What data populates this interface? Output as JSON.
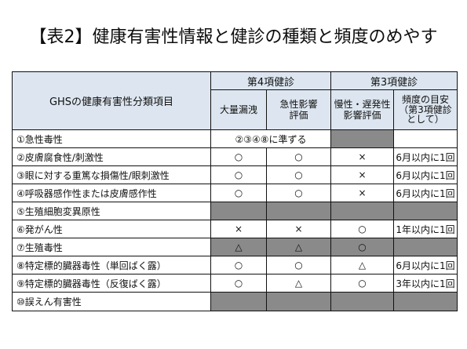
{
  "title": "【表2】健康有害性情報と健診の種類と頻度のめやす",
  "header": {
    "item_col": "GHSの健康有害性分類項目",
    "group4": "第4項健診",
    "group3": "第3項健診",
    "sub": {
      "col1": "大量漏洩",
      "col2a": "急性影響",
      "col2b": "評価",
      "col3a": "慢性・遅発性",
      "col3b": "影響評価",
      "col4a": "頻度の目安",
      "col4b": "（第3項健診",
      "col4c": "として）"
    }
  },
  "rows": [
    {
      "label": "①急性毒性",
      "span_text": "②③④⑧に準ずる",
      "c3": "",
      "c4": ""
    },
    {
      "label": "②皮膚腐食性/刺激性",
      "c1": "○",
      "c2": "○",
      "c3": "×",
      "c4": "6月以内に1回"
    },
    {
      "label": "③眼に対する重篤な損傷性/眼刺激性",
      "c1": "○",
      "c2": "○",
      "c3": "×",
      "c4": "6月以内に1回"
    },
    {
      "label": "④呼吸器感作性または皮膚感作性",
      "c1": "○",
      "c2": "○",
      "c3": "×",
      "c4": "6月以内に1回"
    },
    {
      "label": "⑤生殖細胞変異原性"
    },
    {
      "label": "⑥発がん性",
      "c1": "×",
      "c2": "×",
      "c3": "○",
      "c4": "1年以内に1回"
    },
    {
      "label": "⑦生殖毒性",
      "c1": "△",
      "c2": "△",
      "c3": "○",
      "c4": ""
    },
    {
      "label": "⑧特定標的臓器毒性（単回ばく露）",
      "c1": "○",
      "c2": "○",
      "c3": "△",
      "c4": "6月以内に1回"
    },
    {
      "label": "⑨特定標的臓器毒性（反復ばく露）",
      "c1": "○",
      "c2": "△",
      "c3": "○",
      "c4": "3年以内に1回"
    },
    {
      "label": "⑩誤えん有害性"
    }
  ]
}
